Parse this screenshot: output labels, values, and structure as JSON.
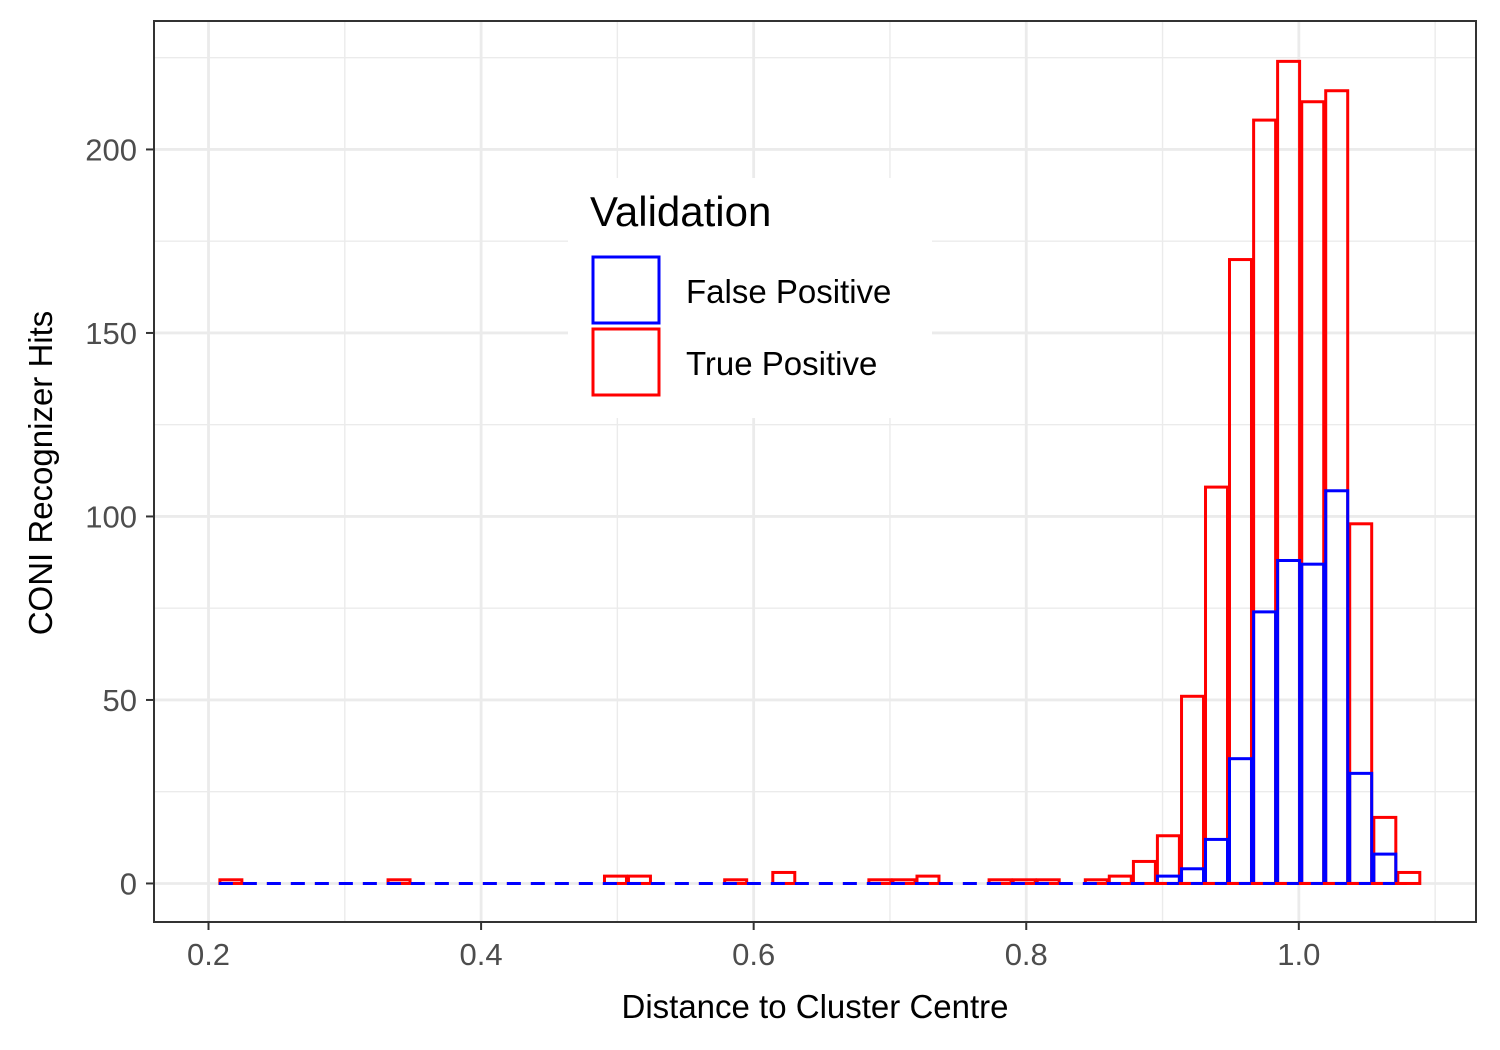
{
  "chart_data": {
    "type": "bar",
    "title": "",
    "xlabel": "Distance to Cluster Centre",
    "ylabel": "CONI Recognizer Hits",
    "xlim": [
      0.16,
      1.13
    ],
    "ylim": [
      -10.5,
      235
    ],
    "x_ticks": [
      0.2,
      0.4,
      0.6,
      0.8,
      1.0
    ],
    "x_tick_labels": [
      "0.2",
      "0.4",
      "0.6",
      "0.8",
      "1.0"
    ],
    "y_ticks": [
      0,
      50,
      100,
      150,
      200
    ],
    "y_tick_labels": [
      "0",
      "50",
      "100",
      "150",
      "200"
    ],
    "grid": true,
    "bin_width": 0.0176,
    "x": [
      0.2164,
      0.3398,
      0.4986,
      0.5162,
      0.5868,
      0.6221,
      0.6926,
      0.7103,
      0.7279,
      0.7808,
      0.7985,
      0.8161,
      0.8514,
      0.869,
      0.8867,
      0.9043,
      0.922,
      0.9396,
      0.9572,
      0.9749,
      0.9925,
      1.0102,
      1.0278,
      1.0454,
      1.0631,
      1.0807
    ],
    "series": [
      {
        "name": "False Positive",
        "color": "#0000ff",
        "values": [
          0,
          0,
          0,
          0,
          0,
          0,
          0,
          0,
          0,
          0,
          0,
          0,
          0,
          0,
          0,
          2,
          4,
          12,
          34,
          74,
          88,
          87,
          107,
          30,
          8,
          0
        ]
      },
      {
        "name": "True Positive",
        "color": "#ff0000",
        "values": [
          1,
          1,
          2,
          2,
          1,
          3,
          1,
          1,
          2,
          1,
          1,
          1,
          1,
          2,
          6,
          13,
          51,
          108,
          170,
          208,
          224,
          213,
          216,
          98,
          18,
          3
        ]
      }
    ],
    "legend": {
      "title": "Validation",
      "placement": "inside-top-center",
      "entries": [
        "False Positive",
        "True Positive"
      ]
    }
  }
}
